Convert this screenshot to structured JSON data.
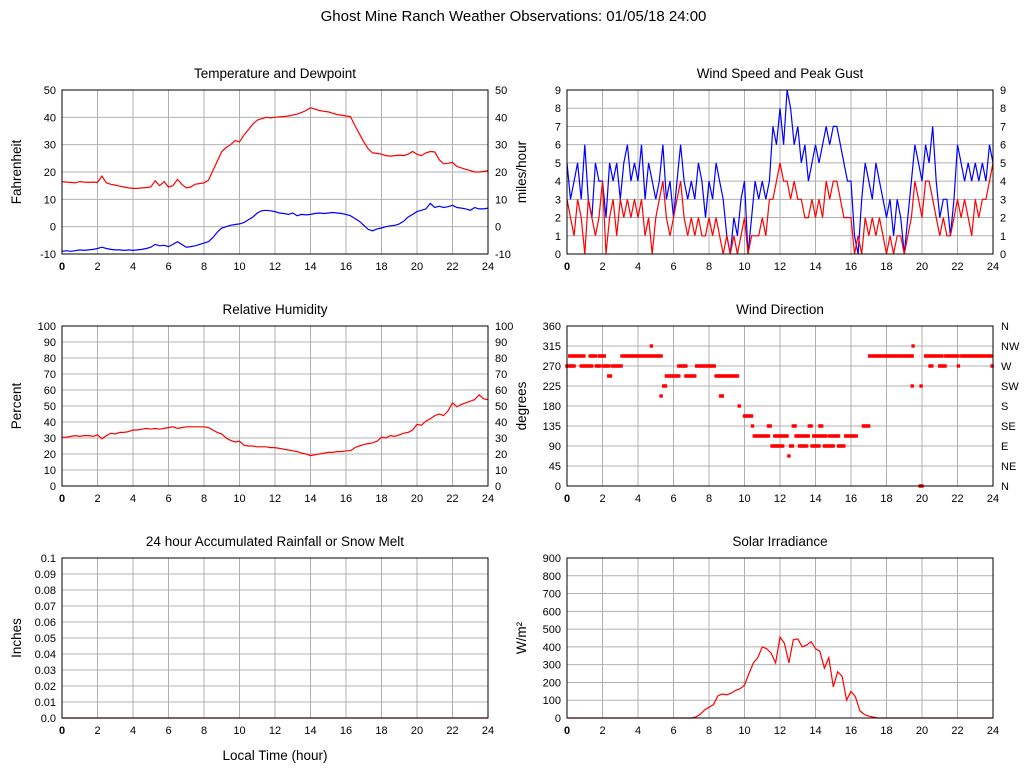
{
  "page": {
    "title": "Ghost Mine Ranch Weather Observations: 01/05/18 24:00"
  },
  "colors": {
    "red": "#ff0000",
    "blue": "#0000ff",
    "grid": "#b0b0b0",
    "axis": "#000000",
    "background": "#ffffff"
  },
  "chart_data": [
    {
      "id": "temperature-dewpoint-chart",
      "type": "line",
      "title": "Temperature and Dewpoint",
      "ylabel": "Fahrenheit",
      "xlabel": "",
      "xlim": [
        0,
        24
      ],
      "ylim": [
        -10,
        50
      ],
      "xticks": [
        0,
        2,
        4,
        6,
        8,
        10,
        12,
        14,
        16,
        18,
        20,
        22,
        24
      ],
      "yticks": [
        -10,
        0,
        10,
        20,
        30,
        40,
        50
      ],
      "mirror_y": true,
      "grid": true,
      "legend": "none",
      "x_step": 0.25,
      "series": [
        {
          "name": "temperature",
          "color": "red",
          "values": [
            16.5,
            16.3,
            16.2,
            16.0,
            16.5,
            16.3,
            16.2,
            16.3,
            16.2,
            18.5,
            16.0,
            15.5,
            15.2,
            14.8,
            14.5,
            14.2,
            14.0,
            14.0,
            14.2,
            14.3,
            14.5,
            16.8,
            15.0,
            16.5,
            14.5,
            15.0,
            17.3,
            15.5,
            14.2,
            14.5,
            15.5,
            15.8,
            16.0,
            17.0,
            20.5,
            24.0,
            27.5,
            29.0,
            30.0,
            31.5,
            31.0,
            33.5,
            35.5,
            37.5,
            39.0,
            39.5,
            40.0,
            39.8,
            40.0,
            40.2,
            40.3,
            40.5,
            40.8,
            41.2,
            41.8,
            42.5,
            43.5,
            43.0,
            42.5,
            42.2,
            42.0,
            41.5,
            41.0,
            40.8,
            40.5,
            40.3,
            37.0,
            34.0,
            31.0,
            28.5,
            27.0,
            26.8,
            26.5,
            26.0,
            25.8,
            26.0,
            26.2,
            26.0,
            26.5,
            27.5,
            26.5,
            26.0,
            27.0,
            27.5,
            27.3,
            24.5,
            23.0,
            23.2,
            23.5,
            22.0,
            21.5,
            21.0,
            20.5,
            20.0,
            20.0,
            20.2,
            20.5
          ]
        },
        {
          "name": "dewpoint",
          "color": "blue",
          "values": [
            -9.0,
            -8.8,
            -9.0,
            -8.8,
            -8.5,
            -8.7,
            -8.5,
            -8.3,
            -8.0,
            -7.5,
            -8.0,
            -8.3,
            -8.5,
            -8.5,
            -8.7,
            -8.5,
            -8.7,
            -8.5,
            -8.3,
            -8.0,
            -7.5,
            -6.5,
            -7.0,
            -6.8,
            -7.3,
            -6.5,
            -5.5,
            -6.5,
            -7.5,
            -7.3,
            -7.0,
            -6.5,
            -6.0,
            -5.5,
            -4.0,
            -2.0,
            -0.5,
            0.0,
            0.5,
            0.8,
            1.0,
            1.5,
            2.5,
            3.5,
            5.0,
            5.8,
            6.0,
            5.8,
            5.5,
            5.0,
            4.8,
            4.5,
            5.0,
            4.0,
            4.5,
            4.3,
            4.5,
            4.8,
            5.0,
            4.8,
            5.0,
            5.2,
            5.0,
            4.8,
            4.5,
            4.0,
            3.0,
            2.0,
            0.5,
            -1.0,
            -1.5,
            -0.8,
            -0.5,
            0.0,
            0.3,
            0.5,
            1.0,
            2.0,
            3.5,
            4.5,
            5.5,
            6.0,
            6.5,
            8.5,
            7.0,
            7.5,
            7.0,
            7.3,
            7.8,
            7.0,
            6.8,
            6.5,
            6.0,
            7.0,
            6.5,
            6.5,
            6.8
          ]
        }
      ]
    },
    {
      "id": "wind-speed-gust-chart",
      "type": "line",
      "title": "Wind Speed and Peak Gust",
      "ylabel": "miles/hour",
      "xlabel": "",
      "xlim": [
        0,
        24
      ],
      "ylim": [
        0,
        9
      ],
      "xticks": [
        0,
        2,
        4,
        6,
        8,
        10,
        12,
        14,
        16,
        18,
        20,
        22,
        24
      ],
      "yticks": [
        0,
        1,
        2,
        3,
        4,
        5,
        6,
        7,
        8,
        9
      ],
      "mirror_y": true,
      "grid": true,
      "legend": "none",
      "x_step": 0.2,
      "series": [
        {
          "name": "peak-gust",
          "color": "blue",
          "values": [
            5,
            3,
            4,
            5,
            3,
            6,
            3,
            2,
            5,
            4,
            4,
            2,
            5,
            4,
            5,
            3,
            5,
            6,
            4,
            5,
            4,
            6,
            3,
            5,
            4,
            3,
            4,
            6,
            3,
            4,
            2,
            4,
            6,
            4,
            3,
            4,
            3,
            5,
            4,
            2,
            4,
            3,
            5,
            4,
            3,
            1,
            0,
            2,
            1,
            3,
            4,
            0,
            2,
            4,
            3,
            4,
            3,
            4,
            7,
            6,
            8,
            6,
            9,
            8,
            6,
            7,
            5,
            6,
            4,
            5,
            6,
            5,
            6,
            7,
            6,
            7,
            7,
            6,
            5,
            4,
            4,
            1,
            0,
            3,
            5,
            4,
            3,
            5,
            4,
            3,
            2,
            3,
            1,
            3,
            2,
            0,
            2,
            4,
            6,
            5,
            4,
            6,
            5,
            7,
            4,
            2,
            3,
            3,
            1,
            3,
            6,
            5,
            4,
            5,
            4,
            5,
            4,
            5,
            4,
            6,
            5
          ]
        },
        {
          "name": "wind-speed",
          "color": "red",
          "values": [
            3,
            2,
            1,
            3,
            2,
            0,
            3,
            2,
            1,
            2,
            4,
            0,
            2,
            3,
            1,
            3,
            2,
            3,
            2,
            3,
            2,
            3,
            1,
            2,
            0,
            2,
            3,
            4,
            2,
            1,
            2,
            3,
            4,
            2,
            1,
            2,
            1,
            2,
            1,
            1,
            2,
            1,
            2,
            1,
            0,
            1,
            0,
            1,
            0,
            1,
            2,
            0,
            1,
            1,
            1,
            2,
            1,
            3,
            3,
            4,
            5,
            4,
            4,
            3,
            4,
            3,
            3,
            2,
            2,
            3,
            2,
            3,
            2,
            4,
            3,
            4,
            4,
            3,
            2,
            2,
            2,
            0,
            1,
            0,
            2,
            1,
            2,
            1,
            2,
            1,
            0,
            1,
            0,
            1,
            1,
            0,
            1,
            2,
            4,
            3,
            2,
            4,
            4,
            3,
            2,
            1,
            2,
            1,
            1,
            2,
            3,
            2,
            3,
            2,
            1,
            3,
            2,
            3,
            3,
            4,
            5
          ]
        }
      ]
    },
    {
      "id": "relative-humidity-chart",
      "type": "line",
      "title": "Relative Humidity",
      "ylabel": "Percent",
      "xlabel": "",
      "xlim": [
        0,
        24
      ],
      "ylim": [
        0,
        100
      ],
      "xticks": [
        0,
        2,
        4,
        6,
        8,
        10,
        12,
        14,
        16,
        18,
        20,
        22,
        24
      ],
      "yticks": [
        0,
        10,
        20,
        30,
        40,
        50,
        60,
        70,
        80,
        90,
        100
      ],
      "mirror_y": true,
      "grid": true,
      "legend": "none",
      "x_step": 0.25,
      "series": [
        {
          "name": "relative-humidity",
          "color": "red",
          "values": [
            30.5,
            30.5,
            31.0,
            31.5,
            31.0,
            31.5,
            31.5,
            31.0,
            32.0,
            29.5,
            31.5,
            33.0,
            32.5,
            33.5,
            33.5,
            34.0,
            35.0,
            35.0,
            35.5,
            36.0,
            35.5,
            36.0,
            35.5,
            36.0,
            36.5,
            37.0,
            36.0,
            36.5,
            37.0,
            37.0,
            37.0,
            37.0,
            37.0,
            36.5,
            35.0,
            33.5,
            32.5,
            30.0,
            28.5,
            27.5,
            28.0,
            25.5,
            25.0,
            25.0,
            24.5,
            24.5,
            24.5,
            24.0,
            24.0,
            23.5,
            23.0,
            22.5,
            22.0,
            21.5,
            20.5,
            20.0,
            19.0,
            19.5,
            20.0,
            20.5,
            21.0,
            21.0,
            21.5,
            21.5,
            22.0,
            22.0,
            24.0,
            25.0,
            26.0,
            26.5,
            27.0,
            28.0,
            30.5,
            30.0,
            31.5,
            31.0,
            32.0,
            33.0,
            33.5,
            35.0,
            38.5,
            38.0,
            40.5,
            42.0,
            44.0,
            45.0,
            44.0,
            47.0,
            52.0,
            49.5,
            51.0,
            52.0,
            53.0,
            54.0,
            57.0,
            54.5,
            54.0
          ]
        }
      ]
    },
    {
      "id": "wind-direction-chart",
      "type": "scatter",
      "title": "Wind Direction",
      "ylabel": "degrees",
      "xlabel": "",
      "xlim": [
        0,
        24
      ],
      "ylim": [
        0,
        360
      ],
      "xticks": [
        0,
        2,
        4,
        6,
        8,
        10,
        12,
        14,
        16,
        18,
        20,
        22,
        24
      ],
      "yticks": [
        0,
        45,
        90,
        135,
        180,
        225,
        270,
        315,
        360
      ],
      "right_labels": [
        "N",
        "NE",
        "E",
        "SE",
        "S",
        "SW",
        "W",
        "NW",
        "N"
      ],
      "grid": true,
      "legend": "none",
      "dot_step": 0.1,
      "dot_color": "red",
      "segments": [
        [
          270,
          0,
          0.4
        ],
        [
          292.5,
          0.15,
          1.0
        ],
        [
          270,
          0.8,
          1.45
        ],
        [
          292.5,
          1.3,
          1.6
        ],
        [
          270,
          1.65,
          1.9
        ],
        [
          292.5,
          1.8,
          2.15
        ],
        [
          270,
          2.05,
          2.35
        ],
        [
          247.5,
          2.35,
          2.5
        ],
        [
          270,
          2.55,
          3.1
        ],
        [
          292.5,
          3.1,
          5.35
        ],
        [
          315,
          4.75,
          4.8
        ],
        [
          202.5,
          5.3,
          5.35
        ],
        [
          225,
          5.45,
          5.55
        ],
        [
          247.5,
          5.6,
          6.3
        ],
        [
          270,
          6.3,
          6.7
        ],
        [
          247.5,
          6.7,
          7.25
        ],
        [
          270,
          7.3,
          8.3
        ],
        [
          247.5,
          8.4,
          9.0
        ],
        [
          202.5,
          8.65,
          8.75
        ],
        [
          247.5,
          9.1,
          9.65
        ],
        [
          180,
          9.7,
          9.75
        ],
        [
          157.5,
          10.0,
          10.45
        ],
        [
          135,
          10.45,
          10.5
        ],
        [
          112.5,
          10.55,
          11.35
        ],
        [
          135,
          11.35,
          11.45
        ],
        [
          90,
          11.55,
          12.2
        ],
        [
          112.5,
          11.7,
          12.45
        ],
        [
          67.5,
          12.5,
          12.55
        ],
        [
          90,
          12.6,
          12.75
        ],
        [
          135,
          12.75,
          12.85
        ],
        [
          112.5,
          12.9,
          13.6
        ],
        [
          90,
          13.1,
          13.5
        ],
        [
          135,
          13.65,
          13.75
        ],
        [
          90,
          13.8,
          14.2
        ],
        [
          112.5,
          13.9,
          14.6
        ],
        [
          135,
          14.25,
          14.35
        ],
        [
          90,
          14.5,
          15.0
        ],
        [
          112.5,
          14.8,
          15.3
        ],
        [
          90,
          15.3,
          15.65
        ],
        [
          112.5,
          15.7,
          16.3
        ],
        [
          135,
          16.7,
          17.0
        ],
        [
          292.5,
          17.05,
          19.45
        ],
        [
          315,
          19.5,
          19.55
        ],
        [
          225,
          19.45,
          19.5
        ],
        [
          0,
          19.9,
          20.05
        ],
        [
          225,
          19.95,
          20.0
        ],
        [
          292.5,
          20.2,
          21.1
        ],
        [
          270,
          20.45,
          20.6
        ],
        [
          270,
          21.0,
          21.3
        ],
        [
          292.5,
          21.3,
          22.0
        ],
        [
          270,
          22.05,
          22.1
        ],
        [
          292.5,
          22.2,
          23.9
        ],
        [
          270,
          23.95,
          24.0
        ]
      ]
    },
    {
      "id": "rainfall-chart",
      "type": "line",
      "title": "24 hour Accumulated Rainfall or Snow Melt",
      "ylabel": "Inches",
      "xlabel": "Local Time (hour)",
      "xlim": [
        0,
        24
      ],
      "ylim": [
        0,
        0.1
      ],
      "xticks": [
        0,
        2,
        4,
        6,
        8,
        10,
        12,
        14,
        16,
        18,
        20,
        22,
        24
      ],
      "yticks": [
        0,
        0.01,
        0.02,
        0.03,
        0.04,
        0.05,
        0.06,
        0.07,
        0.08,
        0.09,
        0.1
      ],
      "ytick_labels": [
        "0.0",
        "0.01",
        "0.02",
        "0.03",
        "0.04",
        "0.05",
        "0.06",
        "0.07",
        "0.08",
        "0.09",
        "0.1"
      ],
      "mirror_y": false,
      "grid": true,
      "legend": "none",
      "x_step": 24,
      "series": [
        {
          "name": "accumulated-rainfall",
          "color": "red",
          "values": [
            0,
            0
          ]
        }
      ]
    },
    {
      "id": "solar-irradiance-chart",
      "type": "line",
      "title": "Solar Irradiance",
      "ylabel": "W/m²",
      "xlabel": "",
      "xlim": [
        0,
        24
      ],
      "ylim": [
        0,
        900
      ],
      "xticks": [
        0,
        2,
        4,
        6,
        8,
        10,
        12,
        14,
        16,
        18,
        20,
        22,
        24
      ],
      "yticks": [
        0,
        100,
        200,
        300,
        400,
        500,
        600,
        700,
        800,
        900
      ],
      "mirror_y": false,
      "grid": true,
      "legend": "none",
      "x_step": 0.25,
      "series": [
        {
          "name": "solar-irradiance",
          "color": "red",
          "values": [
            0,
            0,
            0,
            0,
            0,
            0,
            0,
            0,
            0,
            0,
            0,
            0,
            0,
            0,
            0,
            0,
            0,
            0,
            0,
            0,
            0,
            0,
            0,
            0,
            0,
            0,
            0,
            0,
            0,
            5,
            20,
            45,
            60,
            75,
            125,
            135,
            130,
            140,
            155,
            165,
            185,
            250,
            310,
            340,
            400,
            390,
            365,
            310,
            455,
            420,
            310,
            440,
            445,
            400,
            410,
            430,
            390,
            375,
            280,
            340,
            175,
            260,
            235,
            100,
            150,
            120,
            40,
            20,
            10,
            5,
            0,
            0,
            0,
            0,
            0,
            0,
            0,
            0,
            0,
            0,
            0,
            0,
            0,
            0,
            0,
            0,
            0,
            0,
            0,
            0,
            0,
            0,
            0,
            0,
            0,
            0,
            0
          ]
        }
      ]
    }
  ]
}
